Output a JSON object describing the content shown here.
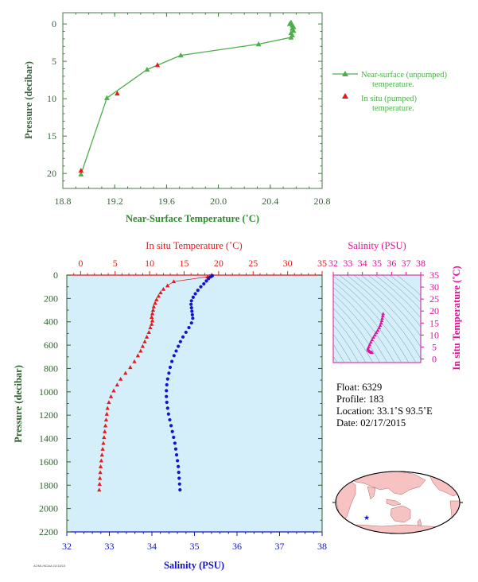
{
  "colors": {
    "green": "#4daf4a",
    "red": "#e41a1c",
    "blue": "#1414c8",
    "magenta": "#e0119b",
    "axis_label_green": "#2e8b2e",
    "plot_bg": "#d4effa",
    "tick_green": "#2f5f2f"
  },
  "chart_data": [
    {
      "type": "line",
      "xlabel": "Near-Surface Temperature (˚C)",
      "ylabel": "Pressure (decibar)",
      "xlim": [
        18.8,
        20.8
      ],
      "ylim": [
        22,
        -1.5
      ],
      "x_ticks": [
        18.8,
        19.2,
        19.6,
        20.0,
        20.4,
        20.8
      ],
      "x_tick_labels": [
        "18.8",
        "19.2",
        "19.6",
        "20.0",
        "20.4",
        "20.8"
      ],
      "y_ticks": [
        0,
        5,
        10,
        15,
        20
      ],
      "y_tick_labels": [
        "0",
        "5",
        "10",
        "15",
        "20"
      ],
      "legend": {
        "placement": "right",
        "entries": [
          {
            "line1": "Near-surface (unpumped)",
            "line2": "temperature."
          },
          {
            "line1": "In situ (pumped)",
            "line2": "temperature."
          }
        ]
      },
      "series": [
        {
          "marker": "triangle",
          "points": [
            [
              20.56,
              -0.2
            ],
            [
              20.55,
              0.0
            ],
            [
              20.57,
              0.2
            ],
            [
              20.58,
              0.4
            ],
            [
              20.57,
              0.6
            ],
            [
              20.58,
              0.9
            ],
            [
              20.56,
              1.2
            ],
            [
              20.57,
              1.5
            ],
            [
              20.56,
              1.8
            ],
            [
              20.31,
              2.7
            ],
            [
              19.71,
              4.2
            ],
            [
              19.45,
              6.1
            ],
            [
              19.14,
              9.9
            ],
            [
              18.94,
              20.1
            ]
          ]
        },
        {
          "marker": "triangle",
          "points": [
            [
              19.53,
              5.5
            ],
            [
              19.22,
              9.3
            ],
            [
              18.94,
              19.6
            ]
          ]
        }
      ]
    },
    {
      "type": "line",
      "ylabel": "Pressure (decibar)",
      "ylim": [
        2200,
        0
      ],
      "y_ticks": [
        0,
        200,
        400,
        600,
        800,
        1000,
        1200,
        1400,
        1600,
        1800,
        2000,
        2200
      ],
      "y_tick_labels": [
        "0",
        "200",
        "400",
        "600",
        "800",
        "1000",
        "1200",
        "1400",
        "1600",
        "1800",
        "2000",
        "2200"
      ],
      "top_axis": {
        "label": "In situ Temperature (˚C)",
        "xlim": [
          -2,
          35
        ],
        "ticks": [
          0,
          5,
          10,
          15,
          20,
          25,
          30,
          35
        ],
        "tick_labels": [
          "0",
          "5",
          "10",
          "15",
          "20",
          "25",
          "30",
          "35"
        ]
      },
      "bottom_axis": {
        "label": "Salinity (PSU)",
        "xlim": [
          32,
          38
        ],
        "ticks": [
          32,
          33,
          34,
          35,
          36,
          37,
          38
        ],
        "tick_labels": [
          "32",
          "33",
          "34",
          "35",
          "36",
          "37",
          "38"
        ]
      },
      "series": [
        {
          "axis": "top",
          "marker": "triangle",
          "points": [
            [
              18.9,
              5
            ],
            [
              18.7,
              10
            ],
            [
              18.4,
              15
            ],
            [
              13.5,
              55
            ],
            [
              12.6,
              90
            ],
            [
              12.0,
              120
            ],
            [
              11.6,
              150
            ],
            [
              11.3,
              180
            ],
            [
              11.0,
              210
            ],
            [
              10.8,
              240
            ],
            [
              10.6,
              270
            ],
            [
              10.5,
              300
            ],
            [
              10.4,
              330
            ],
            [
              10.3,
              360
            ],
            [
              10.4,
              390
            ],
            [
              10.3,
              420
            ],
            [
              10.1,
              450
            ],
            [
              9.9,
              490
            ],
            [
              9.6,
              530
            ],
            [
              9.3,
              570
            ],
            [
              9.0,
              610
            ],
            [
              8.7,
              650
            ],
            [
              8.3,
              690
            ],
            [
              7.8,
              740
            ],
            [
              7.2,
              790
            ],
            [
              6.5,
              840
            ],
            [
              5.8,
              890
            ],
            [
              5.3,
              940
            ],
            [
              4.8,
              990
            ],
            [
              4.4,
              1040
            ],
            [
              4.1,
              1090
            ],
            [
              3.9,
              1140
            ],
            [
              3.8,
              1190
            ],
            [
              3.7,
              1240
            ],
            [
              3.6,
              1290
            ],
            [
              3.5,
              1340
            ],
            [
              3.4,
              1390
            ],
            [
              3.3,
              1440
            ],
            [
              3.2,
              1490
            ],
            [
              3.1,
              1540
            ],
            [
              3.0,
              1590
            ],
            [
              2.9,
              1640
            ],
            [
              2.85,
              1690
            ],
            [
              2.8,
              1740
            ],
            [
              2.75,
              1790
            ],
            [
              2.7,
              1840
            ]
          ]
        },
        {
          "axis": "bottom",
          "marker": "dot",
          "points": [
            [
              35.42,
              5
            ],
            [
              35.38,
              15
            ],
            [
              35.33,
              30
            ],
            [
              35.28,
              50
            ],
            [
              35.22,
              75
            ],
            [
              35.15,
              100
            ],
            [
              35.08,
              130
            ],
            [
              35.02,
              160
            ],
            [
              34.97,
              190
            ],
            [
              34.93,
              220
            ],
            [
              34.92,
              250
            ],
            [
              34.93,
              280
            ],
            [
              34.94,
              310
            ],
            [
              34.95,
              340
            ],
            [
              34.96,
              370
            ],
            [
              34.93,
              410
            ],
            [
              34.87,
              450
            ],
            [
              34.8,
              490
            ],
            [
              34.73,
              530
            ],
            [
              34.67,
              570
            ],
            [
              34.62,
              610
            ],
            [
              34.57,
              650
            ],
            [
              34.52,
              690
            ],
            [
              34.47,
              740
            ],
            [
              34.43,
              790
            ],
            [
              34.4,
              840
            ],
            [
              34.37,
              890
            ],
            [
              34.35,
              940
            ],
            [
              34.34,
              990
            ],
            [
              34.34,
              1040
            ],
            [
              34.35,
              1090
            ],
            [
              34.37,
              1140
            ],
            [
              34.39,
              1190
            ],
            [
              34.42,
              1240
            ],
            [
              34.45,
              1290
            ],
            [
              34.48,
              1340
            ],
            [
              34.51,
              1390
            ],
            [
              34.54,
              1440
            ],
            [
              34.56,
              1490
            ],
            [
              34.58,
              1540
            ],
            [
              34.6,
              1590
            ],
            [
              34.62,
              1640
            ],
            [
              34.63,
              1690
            ],
            [
              34.64,
              1740
            ],
            [
              34.65,
              1790
            ],
            [
              34.66,
              1840
            ]
          ]
        }
      ]
    },
    {
      "type": "scatter",
      "xlabel": "Salinity (PSU)",
      "ylabel": "In situ Temperature (˚C)",
      "xlim": [
        32,
        38
      ],
      "ylim": [
        -1.5,
        35
      ],
      "x_ticks": [
        32,
        33,
        34,
        35,
        36,
        37,
        38
      ],
      "x_tick_labels": [
        "32",
        "33",
        "34",
        "35",
        "36",
        "37",
        "38"
      ],
      "y_ticks": [
        0,
        5,
        10,
        15,
        20,
        25,
        30,
        35
      ],
      "y_tick_labels": [
        "0",
        "5",
        "10",
        "15",
        "20",
        "25",
        "30",
        "35"
      ],
      "points": [
        [
          35.42,
          18.9
        ],
        [
          35.4,
          18.0
        ],
        [
          35.36,
          17.0
        ],
        [
          35.33,
          16.0
        ],
        [
          35.28,
          15.0
        ],
        [
          35.22,
          14.0
        ],
        [
          35.15,
          13.0
        ],
        [
          35.05,
          12.0
        ],
        [
          34.95,
          11.0
        ],
        [
          34.85,
          10.0
        ],
        [
          34.75,
          9.0
        ],
        [
          34.66,
          8.0
        ],
        [
          34.58,
          7.0
        ],
        [
          34.5,
          6.0
        ],
        [
          34.43,
          5.0
        ],
        [
          34.38,
          4.3
        ],
        [
          34.4,
          3.8
        ],
        [
          34.45,
          3.4
        ],
        [
          34.5,
          3.1
        ],
        [
          34.56,
          2.9
        ],
        [
          34.62,
          2.75
        ],
        [
          34.66,
          2.7
        ]
      ]
    }
  ],
  "float_info": {
    "float": "Float:  6329",
    "profile": "Profile:  183",
    "location": "Location:  33.1˚S  93.5˚E",
    "date": "Date:  02/17/2015"
  },
  "footer_tiny": "AOML/NOAA 02/18/15"
}
